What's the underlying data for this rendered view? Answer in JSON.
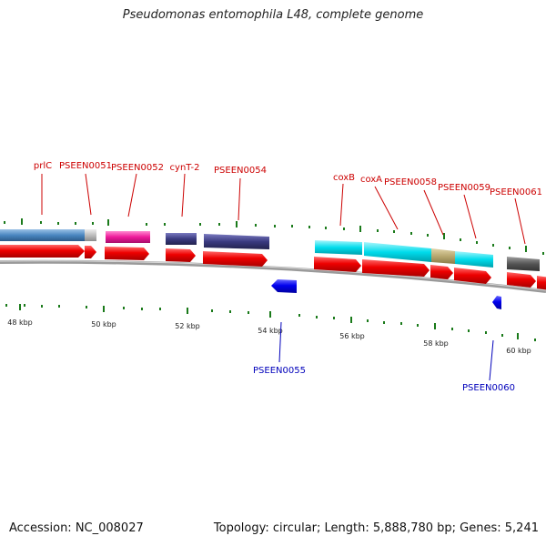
{
  "title": "Pseudomonas entomophila L48, complete genome",
  "footer": {
    "accession": "Accession: NC_008027",
    "summary": "Topology: circular; Length: 5,888,780 bp; Genes: 5,241"
  },
  "scale_ticks": [
    "48 kbp",
    "50 kbp",
    "52 kbp",
    "54 kbp",
    "56 kbp",
    "58 kbp",
    "60 kbp"
  ],
  "genes_top": [
    "prlC",
    "PSEEN0051",
    "PSEEN0052",
    "cynT-2",
    "PSEEN0054",
    "coxB",
    "coxA",
    "PSEEN0058",
    "PSEEN0059",
    "PSEEN0061"
  ],
  "genes_bottom": [
    "PSEEN0055",
    "PSEEN0060"
  ],
  "colors": {
    "forward_cds": "#ee0000",
    "reverse_cds": "#0000ee",
    "cog_steel": "#4a86c0",
    "cog_magenta": "#ee1a9a",
    "cog_purple": "#3a3a80",
    "cog_cyan": "#00dcec",
    "cog_khaki": "#b8a870",
    "cog_gray": "#555555",
    "backbone": "#888888",
    "minor_tick": "#1a7a1a"
  }
}
